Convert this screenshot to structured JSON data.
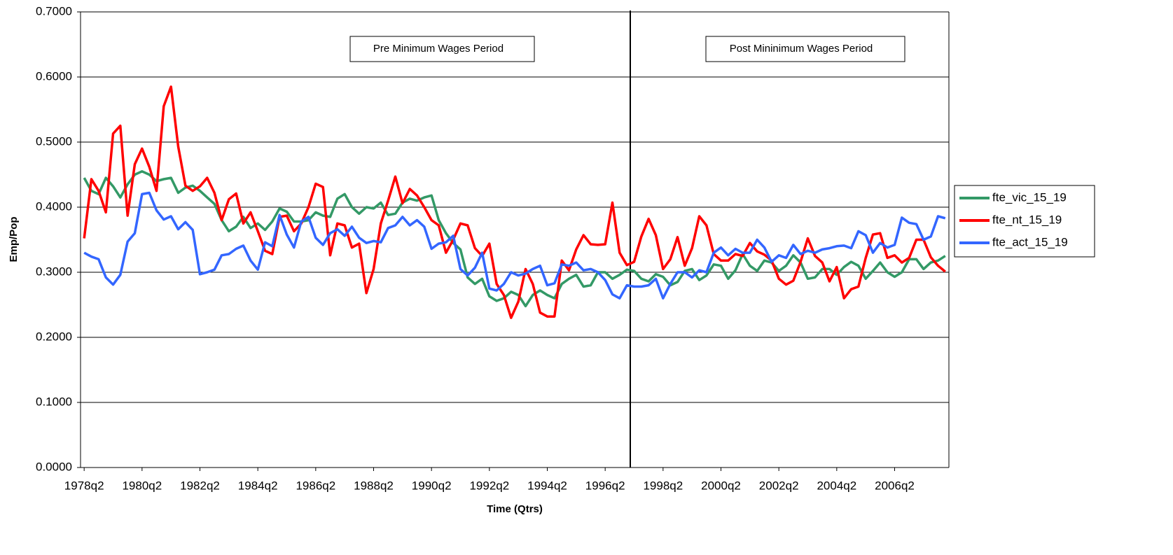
{
  "chart_data": {
    "type": "line",
    "x_label": "Time (Qtrs)",
    "y_label": "Emp/Pop",
    "annotations": [
      "Pre Minimum Wages Period",
      "Post Mininimum Wages Period"
    ],
    "categories": [
      "1978q2",
      null,
      null,
      null,
      null,
      null,
      null,
      null,
      "1980q2",
      null,
      null,
      null,
      null,
      null,
      null,
      null,
      "1982q2",
      null,
      null,
      null,
      null,
      null,
      null,
      null,
      "1984q2",
      null,
      null,
      null,
      null,
      null,
      null,
      null,
      "1986q2",
      null,
      null,
      null,
      null,
      null,
      null,
      null,
      "1988q2",
      null,
      null,
      null,
      null,
      null,
      null,
      null,
      "1990q2",
      null,
      null,
      null,
      null,
      null,
      null,
      null,
      "1992q2",
      null,
      null,
      null,
      null,
      null,
      null,
      null,
      "1994q2",
      null,
      null,
      null,
      null,
      null,
      null,
      null,
      "1996q2",
      null,
      null,
      null,
      null,
      null,
      null,
      null,
      "1998q2",
      null,
      null,
      null,
      null,
      null,
      null,
      null,
      "2000q2",
      null,
      null,
      null,
      null,
      null,
      null,
      null,
      "2002q2",
      null,
      null,
      null,
      null,
      null,
      null,
      null,
      "2004q2",
      null,
      null,
      null,
      null,
      null,
      null,
      null,
      "2006q2",
      null,
      null,
      null,
      null,
      null,
      null,
      null
    ],
    "series": [
      {
        "name": "fte_vic_15_19",
        "color": "#339966",
        "values": [
          0.445,
          0.425,
          0.42,
          0.445,
          0.432,
          0.415,
          0.435,
          0.45,
          0.455,
          0.45,
          0.44,
          0.443,
          0.445,
          0.422,
          0.43,
          0.433,
          0.425,
          0.415,
          0.405,
          0.38,
          0.363,
          0.37,
          0.385,
          0.368,
          0.375,
          0.365,
          0.378,
          0.398,
          0.393,
          0.378,
          0.378,
          0.38,
          0.392,
          0.387,
          0.385,
          0.413,
          0.42,
          0.4,
          0.39,
          0.4,
          0.398,
          0.407,
          0.388,
          0.39,
          0.407,
          0.413,
          0.41,
          0.415,
          0.418,
          0.38,
          0.36,
          0.345,
          0.335,
          0.292,
          0.282,
          0.29,
          0.263,
          0.256,
          0.26,
          0.27,
          0.265,
          0.248,
          0.265,
          0.272,
          0.265,
          0.26,
          0.282,
          0.29,
          0.296,
          0.278,
          0.28,
          0.3,
          0.3,
          0.29,
          0.296,
          0.304,
          0.302,
          0.29,
          0.286,
          0.297,
          0.293,
          0.28,
          0.285,
          0.302,
          0.305,
          0.288,
          0.295,
          0.312,
          0.31,
          0.29,
          0.303,
          0.328,
          0.31,
          0.302,
          0.318,
          0.315,
          0.302,
          0.31,
          0.326,
          0.315,
          0.29,
          0.292,
          0.305,
          0.305,
          0.296,
          0.308,
          0.316,
          0.31,
          0.29,
          0.302,
          0.315,
          0.3,
          0.293,
          0.3,
          0.32,
          0.32,
          0.305,
          0.315,
          0.318,
          0.325
        ]
      },
      {
        "name": "fte_nt_15_19",
        "color": "#ff0000",
        "values": [
          0.352,
          0.443,
          0.425,
          0.392,
          0.513,
          0.525,
          0.387,
          0.466,
          0.49,
          0.462,
          0.425,
          0.555,
          0.585,
          0.493,
          0.433,
          0.425,
          0.432,
          0.445,
          0.422,
          0.38,
          0.412,
          0.421,
          0.375,
          0.392,
          0.363,
          0.333,
          0.328,
          0.385,
          0.387,
          0.363,
          0.375,
          0.4,
          0.436,
          0.431,
          0.326,
          0.375,
          0.372,
          0.338,
          0.344,
          0.268,
          0.305,
          0.375,
          0.41,
          0.447,
          0.406,
          0.428,
          0.418,
          0.4,
          0.38,
          0.372,
          0.33,
          0.35,
          0.375,
          0.372,
          0.337,
          0.325,
          0.344,
          0.282,
          0.265,
          0.23,
          0.255,
          0.305,
          0.282,
          0.238,
          0.232,
          0.232,
          0.318,
          0.303,
          0.335,
          0.357,
          0.343,
          0.342,
          0.343,
          0.407,
          0.33,
          0.311,
          0.316,
          0.355,
          0.382,
          0.357,
          0.305,
          0.32,
          0.354,
          0.31,
          0.337,
          0.386,
          0.372,
          0.328,
          0.318,
          0.318,
          0.328,
          0.325,
          0.345,
          0.332,
          0.327,
          0.318,
          0.29,
          0.281,
          0.287,
          0.316,
          0.352,
          0.325,
          0.315,
          0.286,
          0.308,
          0.26,
          0.274,
          0.278,
          0.322,
          0.358,
          0.36,
          0.322,
          0.326,
          0.315,
          0.322,
          0.35,
          0.35,
          0.323,
          0.31,
          0.301
        ]
      },
      {
        "name": "fte_act_15_19",
        "color": "#3366ff",
        "values": [
          0.33,
          0.324,
          0.32,
          0.292,
          0.281,
          0.296,
          0.347,
          0.36,
          0.42,
          0.422,
          0.395,
          0.381,
          0.386,
          0.366,
          0.377,
          0.365,
          0.297,
          0.3,
          0.304,
          0.326,
          0.328,
          0.336,
          0.341,
          0.318,
          0.304,
          0.346,
          0.34,
          0.388,
          0.358,
          0.338,
          0.378,
          0.385,
          0.353,
          0.342,
          0.36,
          0.366,
          0.356,
          0.37,
          0.353,
          0.345,
          0.348,
          0.346,
          0.368,
          0.372,
          0.385,
          0.372,
          0.38,
          0.37,
          0.336,
          0.344,
          0.346,
          0.356,
          0.305,
          0.295,
          0.307,
          0.33,
          0.275,
          0.272,
          0.282,
          0.3,
          0.295,
          0.298,
          0.305,
          0.31,
          0.28,
          0.283,
          0.312,
          0.31,
          0.315,
          0.303,
          0.305,
          0.3,
          0.288,
          0.266,
          0.26,
          0.28,
          0.278,
          0.278,
          0.28,
          0.29,
          0.26,
          0.282,
          0.3,
          0.3,
          0.292,
          0.303,
          0.3,
          0.33,
          0.338,
          0.326,
          0.336,
          0.33,
          0.33,
          0.35,
          0.338,
          0.316,
          0.326,
          0.322,
          0.342,
          0.328,
          0.333,
          0.33,
          0.335,
          0.337,
          0.34,
          0.341,
          0.337,
          0.363,
          0.357,
          0.33,
          0.345,
          0.338,
          0.342,
          0.384,
          0.376,
          0.374,
          0.35,
          0.355,
          0.386,
          0.383
        ]
      }
    ],
    "ylim": [
      0,
      0.7
    ],
    "yticks": [
      {
        "value": 0,
        "label": "0.0000"
      },
      {
        "value": 0.1,
        "label": "0.1000"
      },
      {
        "value": 0.2,
        "label": "0.2000"
      },
      {
        "value": 0.3,
        "label": "0.3000"
      },
      {
        "value": 0.4,
        "label": "0.4000"
      },
      {
        "value": 0.5,
        "label": "0.5000"
      },
      {
        "value": 0.6,
        "label": "0.6000"
      },
      {
        "value": 0.7,
        "label": "0.7000"
      }
    ],
    "grid": true,
    "legend": "right"
  }
}
